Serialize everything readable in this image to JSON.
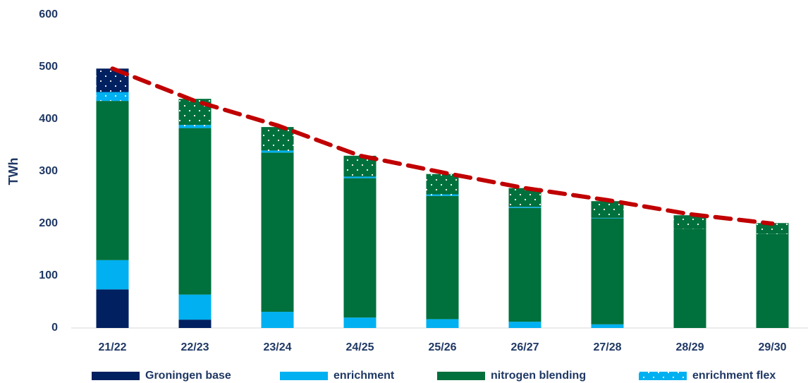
{
  "chart_data": {
    "type": "bar",
    "stacked": true,
    "y_label": "TWh",
    "categories": [
      "21/22",
      "22/23",
      "23/24",
      "24/25",
      "25/26",
      "26/27",
      "27/28",
      "28/29",
      "29/30"
    ],
    "ylim": [
      0,
      600
    ],
    "yticks": [
      0,
      100,
      200,
      300,
      400,
      500,
      600
    ],
    "grid": false,
    "legend": "bottom",
    "series": [
      {
        "name": "Groningen base",
        "color": "#002060",
        "values": [
          74,
          16,
          0,
          0,
          0,
          0,
          0,
          0,
          0
        ]
      },
      {
        "name": "enrichment",
        "color": "#00b0f0",
        "values": [
          56,
          48,
          31,
          20,
          17,
          12,
          7,
          0,
          0
        ]
      },
      {
        "name": "nitrogen blending",
        "color": "#00703c",
        "values": [
          305,
          319,
          305,
          267,
          236,
          218,
          203,
          190,
          180
        ]
      },
      {
        "name": "enrichment flex",
        "color": "#00b0f0",
        "pattern": "dots",
        "values": [
          17,
          6,
          4,
          3,
          3,
          2,
          1,
          0,
          0
        ]
      },
      {
        "color": "#00703c",
        "pattern": "dots",
        "values": [
          0,
          50,
          45,
          40,
          39,
          36,
          32,
          26,
          21
        ]
      },
      {
        "color": "#002060",
        "pattern": "dots",
        "values": [
          45,
          0,
          0,
          0,
          0,
          0,
          0,
          0,
          0
        ]
      },
      {
        "type": "line",
        "color": "#c00000",
        "dashed": true,
        "values": [
          497,
          435,
          388,
          330,
          298,
          268,
          245,
          218,
          200
        ]
      }
    ]
  }
}
